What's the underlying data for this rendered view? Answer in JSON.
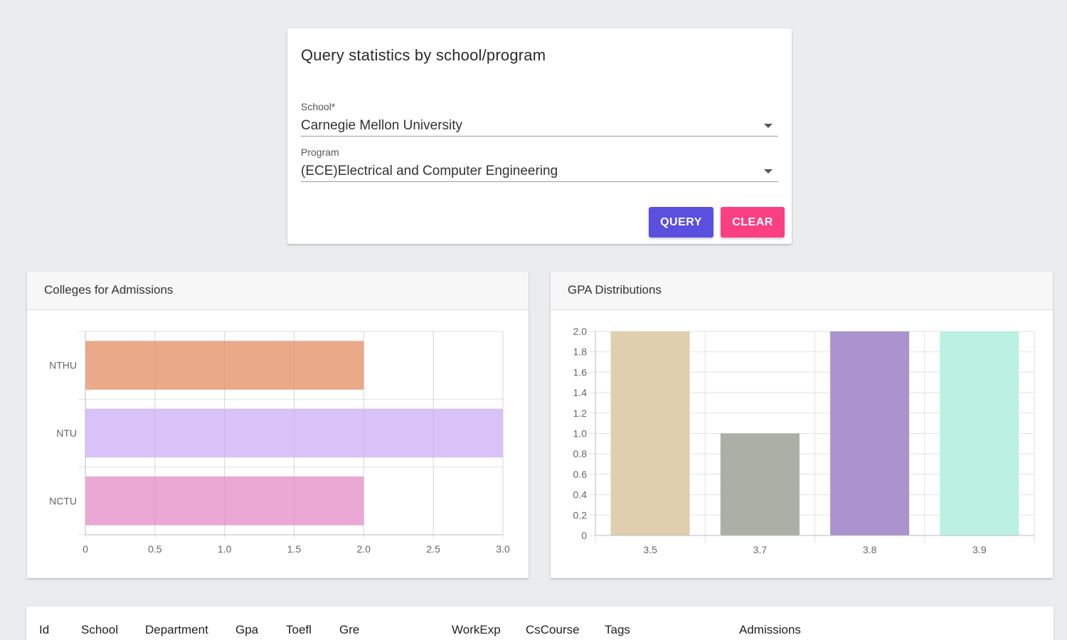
{
  "query": {
    "title": "Query statistics by school/program",
    "school_label": "School*",
    "school_value": "Carnegie Mellon University",
    "program_label": "Program",
    "program_value": "(ECE)Electrical and Computer Engineering",
    "query_button": "QUERY",
    "clear_button": "CLEAR"
  },
  "chart_data": [
    {
      "type": "bar",
      "orientation": "horizontal",
      "title": "Colleges for Admissions",
      "categories": [
        "NTHU",
        "NTU",
        "NCTU"
      ],
      "values": [
        2,
        3,
        2
      ],
      "colors": [
        "#eaaa8a",
        "#d9c2f7",
        "#eba8d4"
      ],
      "xlim": [
        0,
        3
      ],
      "xticks": [
        "0",
        "0.5",
        "1.0",
        "1.5",
        "2.0",
        "2.5",
        "3.0"
      ],
      "grid": true
    },
    {
      "type": "bar",
      "title": "GPA Distributions",
      "categories": [
        "3.5",
        "3.7",
        "3.8",
        "3.9"
      ],
      "values": [
        2,
        1,
        2,
        2
      ],
      "colors": [
        "#dfcfae",
        "#abafa6",
        "#ab94cd",
        "#baf1e2"
      ],
      "ylim": [
        0,
        2
      ],
      "yticks": [
        "0",
        "0.2",
        "0.4",
        "0.6",
        "0.8",
        "1.0",
        "1.2",
        "1.4",
        "1.6",
        "1.8",
        "2.0"
      ],
      "grid": true
    }
  ],
  "table": {
    "headers": [
      "Id",
      "School",
      "Department",
      "Gpa",
      "Toefl",
      "Gre",
      "WorkExp",
      "CsCourse",
      "Tags",
      "Admissions"
    ]
  }
}
